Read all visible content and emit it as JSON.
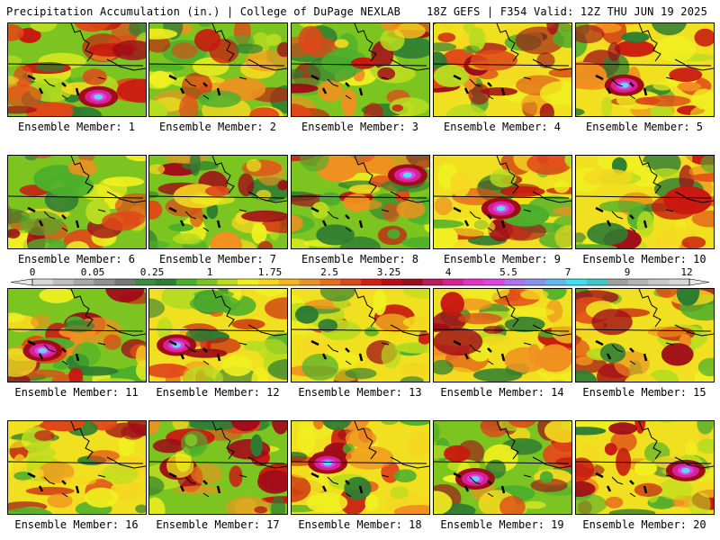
{
  "header": {
    "left": "Precipitation Accumulation (in.) | College of DuPage NEXLAB",
    "right": "18Z GEFS | F354 Valid: 12Z THU JUN 19 2025"
  },
  "panels": [
    {
      "label": "Ensemble Member: 1"
    },
    {
      "label": "Ensemble Member: 2"
    },
    {
      "label": "Ensemble Member: 3"
    },
    {
      "label": "Ensemble Member: 4"
    },
    {
      "label": "Ensemble Member: 5"
    },
    {
      "label": "Ensemble Member: 6"
    },
    {
      "label": "Ensemble Member: 7"
    },
    {
      "label": "Ensemble Member: 8"
    },
    {
      "label": "Ensemble Member: 9"
    },
    {
      "label": "Ensemble Member: 10"
    },
    {
      "label": "Ensemble Member: 11"
    },
    {
      "label": "Ensemble Member: 12"
    },
    {
      "label": "Ensemble Member: 13"
    },
    {
      "label": "Ensemble Member: 14"
    },
    {
      "label": "Ensemble Member: 15"
    },
    {
      "label": "Ensemble Member: 16"
    },
    {
      "label": "Ensemble Member: 17"
    },
    {
      "label": "Ensemble Member: 18"
    },
    {
      "label": "Ensemble Member: 19"
    },
    {
      "label": "Ensemble Member: 20"
    }
  ],
  "colorbar": {
    "labels": [
      "0",
      "0.05",
      "0.25",
      "1",
      "1.75",
      "2.5",
      "3.25",
      "4",
      "5.5",
      "7",
      "9",
      "12"
    ],
    "colors": [
      "#d8d8d8",
      "#c0c0c0",
      "#a8a8a8",
      "#909090",
      "#787878",
      "#3c8c3c",
      "#2e7d32",
      "#4caf2c",
      "#7cc520",
      "#b8dc20",
      "#f0f020",
      "#f5d820",
      "#f5b420",
      "#f09020",
      "#ec6e1c",
      "#e04818",
      "#d02010",
      "#b81010",
      "#a00c18",
      "#c01858",
      "#d82098",
      "#e830c8",
      "#e040e8",
      "#b070f0",
      "#8890f0",
      "#60b8f0",
      "#40e0f0",
      "#40c8c8",
      "#a0a0a0",
      "#b4b4b4",
      "#c8c8c8",
      "#d8d8d8"
    ]
  }
}
